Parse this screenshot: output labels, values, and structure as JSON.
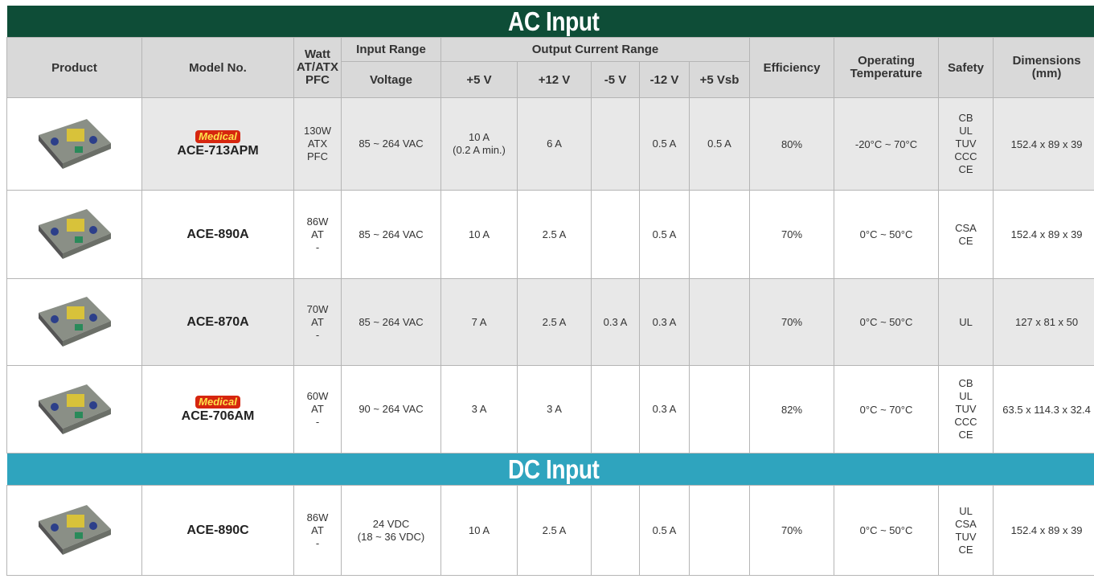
{
  "header": {
    "product": "Product",
    "model": "Model No.",
    "watt": [
      "Watt",
      "AT/ATX",
      "PFC"
    ],
    "input_range": "Input Range",
    "voltage": "Voltage",
    "output_current_range": "Output Current Range",
    "outputs": [
      "+5 V",
      "+12 V",
      "-5 V",
      "-12 V",
      "+5 Vsb"
    ],
    "efficiency": "Efficiency",
    "temperature": [
      "Operating",
      "Temperature"
    ],
    "safety": "Safety",
    "dimensions": [
      "Dimensions",
      "(mm)"
    ]
  },
  "sections": [
    {
      "title": "AC Input",
      "rows": [
        {
          "badge": "Medical",
          "model": "ACE-713APM",
          "watt": [
            "130W",
            "ATX",
            "PFC"
          ],
          "voltage": [
            "85 ~ 264 VAC"
          ],
          "outputs": [
            [
              "10 A",
              "(0.2 A min.)"
            ],
            [
              "6 A"
            ],
            null,
            [
              "0.5 A"
            ],
            [
              "0.5 A"
            ]
          ],
          "efficiency": "80%",
          "temperature": "-20°C ~ 70°C",
          "safety": [
            "CB",
            "UL",
            "TUV",
            "CCC",
            "CE"
          ],
          "dimensions": "152.4 x 89 x 39"
        },
        {
          "model": "ACE-890A",
          "watt": [
            "86W",
            "AT",
            "-"
          ],
          "voltage": [
            "85 ~ 264 VAC"
          ],
          "outputs": [
            [
              "10 A"
            ],
            [
              "2.5 A"
            ],
            null,
            [
              "0.5 A"
            ],
            null
          ],
          "efficiency": "70%",
          "temperature": "0°C ~ 50°C",
          "safety": [
            "CSA",
            "CE"
          ],
          "dimensions": "152.4 x 89 x 39"
        },
        {
          "model": "ACE-870A",
          "watt": [
            "70W",
            "AT",
            "-"
          ],
          "voltage": [
            "85 ~ 264 VAC"
          ],
          "outputs": [
            [
              "7 A"
            ],
            [
              "2.5 A"
            ],
            [
              "0.3 A"
            ],
            [
              "0.3 A"
            ],
            null
          ],
          "efficiency": "70%",
          "temperature": "0°C ~ 50°C",
          "safety": [
            "UL"
          ],
          "dimensions": "127 x 81 x 50"
        },
        {
          "badge": "Medical",
          "model": "ACE-706AM",
          "watt": [
            "60W",
            "AT",
            "-"
          ],
          "voltage": [
            "90 ~ 264 VAC"
          ],
          "outputs": [
            [
              "3 A"
            ],
            [
              "3 A"
            ],
            null,
            [
              "0.3 A"
            ],
            null
          ],
          "efficiency": "82%",
          "temperature": "0°C ~ 70°C",
          "safety": [
            "CB",
            "UL",
            "TUV",
            "CCC",
            "CE"
          ],
          "dimensions": "63.5 x 114.3 x 32.4"
        }
      ]
    },
    {
      "title": "DC Input",
      "rows": [
        {
          "model": "ACE-890C",
          "watt": [
            "86W",
            "AT",
            "-"
          ],
          "voltage": [
            "24 VDC",
            "(18 ~ 36 VDC)"
          ],
          "outputs": [
            [
              "10 A"
            ],
            [
              "2.5 A"
            ],
            null,
            [
              "0.5 A"
            ],
            null
          ],
          "efficiency": "70%",
          "temperature": "0°C ~ 50°C",
          "safety": [
            "UL",
            "CSA",
            "TUV",
            "CE"
          ],
          "dimensions": "152.4 x 89 x 39"
        }
      ]
    }
  ]
}
